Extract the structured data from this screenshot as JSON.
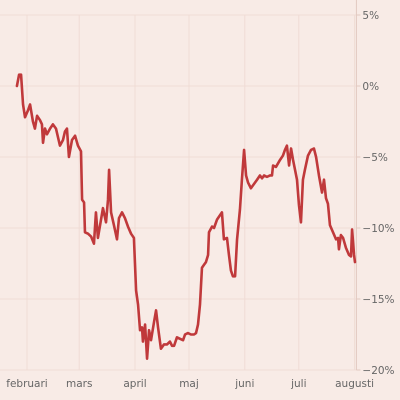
{
  "chart_data": {
    "type": "line",
    "color": "#c0393b",
    "grid": true,
    "x": [
      -5.6,
      -4.4,
      -3.3,
      -2.2,
      -1.1,
      0.6,
      1.7,
      3.3,
      4.4,
      5.6,
      7.2,
      8.3,
      8.9,
      10,
      11.1,
      12.8,
      14.4,
      16.1,
      18.3,
      20,
      21.1,
      22.2,
      23.3,
      25,
      26.7,
      28.3,
      30,
      30.6,
      31.7,
      32.2,
      33.9,
      35.6,
      37.2,
      38.3,
      39.4,
      40.6,
      42.2,
      43.9,
      45,
      45.6,
      46.7,
      48.3,
      50,
      51.1,
      52.8,
      54.4,
      56.1,
      57.8,
      59.4,
      60.6,
      61.7,
      62.8,
      63.9,
      64.4,
      65.6,
      66.7,
      67.8,
      68.9,
      70.6,
      71.7,
      72.8,
      74.4,
      76.1,
      77.8,
      79.4,
      80.6,
      81.7,
      83.3,
      85,
      86.7,
      87.8,
      89.4,
      91.1,
      92.8,
      93.9,
      95,
      96.1,
      97.2,
      98.3,
      99.4,
      100.6,
      101.1,
      102.8,
      103.9,
      105.6,
      107.2,
      108.3,
      109.4,
      111.1,
      112.2,
      113.3,
      114.4,
      115.6,
      116.7,
      118.3,
      119.4,
      120.6,
      121.7,
      122.8,
      124.4,
      126.1,
      127.8,
      129.4,
      130.6,
      131.7,
      133.3,
      135,
      136.1,
      136.7,
      138.3,
      140.6,
      142.2,
      143.3,
      144.4,
      145.6,
      146.7,
      147.8,
      148.9,
      150,
      151.1,
      152.2,
      153.3,
      154.4,
      156.1,
      157.8,
      159.4,
      160.6,
      162.2,
      163.9,
      165,
      166.1,
      167.2,
      168.3,
      170,
      171.7,
      172.8,
      173.3,
      174.4,
      175.6,
      177.2,
      178.9,
      180,
      180.6,
      181.7,
      182.2
    ],
    "values": [
      0,
      0.8,
      0.8,
      -1.3,
      -2.2,
      -1.7,
      -1.3,
      -2.5,
      -3.0,
      -2.1,
      -2.4,
      -2.7,
      -4.0,
      -3.0,
      -3.4,
      -3.0,
      -2.7,
      -3.0,
      -4.2,
      -3.8,
      -3.2,
      -3.0,
      -5.0,
      -3.8,
      -3.5,
      -4.2,
      -4.6,
      -8.0,
      -8.2,
      -10.3,
      -10.4,
      -10.6,
      -11.1,
      -8.9,
      -10.7,
      -9.8,
      -8.6,
      -9.6,
      -8.0,
      -5.9,
      -8.9,
      -9.8,
      -10.8,
      -9.3,
      -8.9,
      -9.3,
      -9.9,
      -10.4,
      -10.7,
      -14.4,
      -15.4,
      -17.2,
      -17.0,
      -18.0,
      -16.8,
      -19.2,
      -17.2,
      -17.9,
      -16.6,
      -15.8,
      -17.0,
      -18.5,
      -18.2,
      -18.2,
      -18.0,
      -18.3,
      -18.3,
      -17.7,
      -17.8,
      -17.9,
      -17.5,
      -17.4,
      -17.5,
      -17.5,
      -17.4,
      -16.8,
      -15.4,
      -12.8,
      -12.6,
      -12.4,
      -11.9,
      -10.3,
      -9.9,
      -10.0,
      -9.4,
      -9.1,
      -8.9,
      -10.8,
      -10.7,
      -11.9,
      -13.0,
      -13.4,
      -13.4,
      -10.8,
      -8.7,
      -6.6,
      -4.5,
      -6.3,
      -6.8,
      -7.2,
      -6.9,
      -6.6,
      -6.3,
      -6.5,
      -6.3,
      -6.4,
      -6.3,
      -6.3,
      -5.6,
      -5.7,
      -5.2,
      -4.9,
      -4.5,
      -4.2,
      -5.6,
      -4.4,
      -5.2,
      -5.9,
      -6.6,
      -8.4,
      -9.6,
      -6.6,
      -5.9,
      -4.9,
      -4.5,
      -4.4,
      -5.0,
      -6.3,
      -7.5,
      -6.6,
      -7.9,
      -8.3,
      -9.8,
      -10.3,
      -10.8,
      -10.7,
      -11.5,
      -10.5,
      -10.7,
      -11.4,
      -11.9,
      -12.0,
      -10.1,
      -11.9,
      -12.4
    ],
    "xlim": [
      -15,
      183
    ],
    "xticks": [
      {
        "value": 0,
        "label": "februari"
      },
      {
        "value": 29,
        "label": "mars"
      },
      {
        "value": 60,
        "label": "april"
      },
      {
        "value": 90,
        "label": "maj"
      },
      {
        "value": 121,
        "label": "juni"
      },
      {
        "value": 151,
        "label": "juli"
      },
      {
        "value": 182,
        "label": "augusti"
      }
    ],
    "ylim": [
      -20,
      5
    ],
    "yticks": [
      {
        "value": 5,
        "label": "5%"
      },
      {
        "value": 0,
        "label": "0%"
      },
      {
        "value": -5,
        "label": "−5%"
      },
      {
        "value": -10,
        "label": "−10%"
      },
      {
        "value": -15,
        "label": "−15%"
      },
      {
        "value": -20,
        "label": "−20%"
      }
    ]
  }
}
